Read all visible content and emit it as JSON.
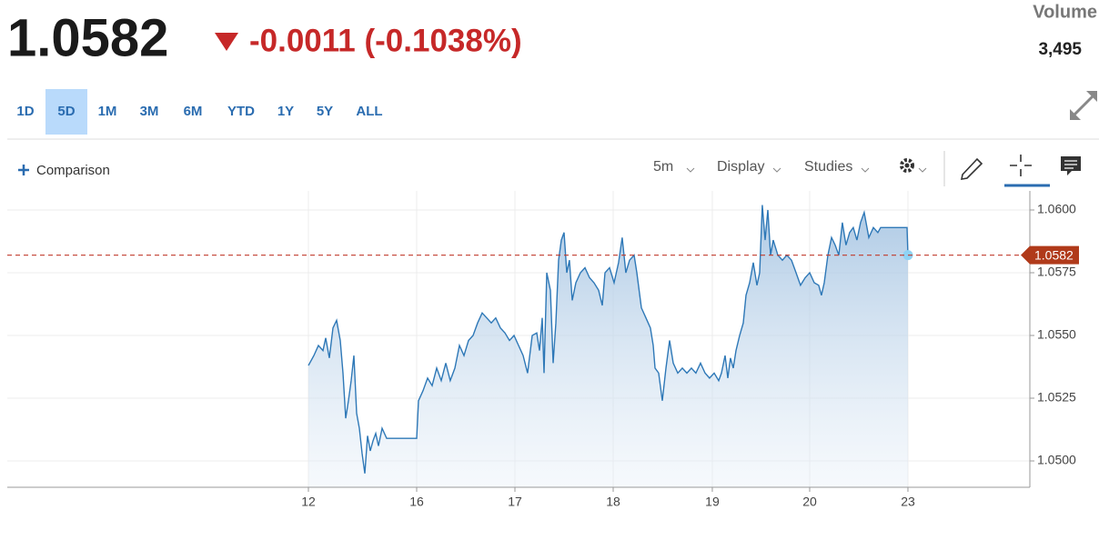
{
  "header": {
    "price": "1.0582",
    "change": "-0.0011 (-0.1038%)",
    "volume_label": "Volume",
    "volume": "3,495"
  },
  "range_buttons": [
    "1D",
    "5D",
    "1M",
    "3M",
    "6M",
    "YTD",
    "1Y",
    "5Y",
    "ALL"
  ],
  "selected_range": "5D",
  "toolbar": {
    "comparison": "Comparison",
    "interval": "5m",
    "display": "Display",
    "studies": "Studies"
  },
  "chart_data": {
    "type": "area",
    "x": [
      0,
      0.056,
      0.102,
      0.148,
      0.176,
      0.213,
      0.25,
      0.287,
      0.324,
      0.352,
      0.38,
      0.407,
      0.435,
      0.463,
      0.491,
      0.519,
      0.546,
      0.574,
      0.602,
      0.63,
      0.657,
      0.685,
      0.713,
      0.75,
      0.796,
      1.102,
      1.12,
      1.167,
      1.213,
      1.259,
      1.306,
      1.352,
      1.398,
      1.444,
      1.491,
      1.537,
      1.583,
      1.63,
      1.676,
      1.722,
      1.769,
      1.815,
      1.861,
      1.907,
      1.954,
      2.0,
      2.046,
      2.093,
      2.139,
      2.185,
      2.231,
      2.278,
      2.324,
      2.352,
      2.38,
      2.398,
      2.426,
      2.463,
      2.491,
      2.519,
      2.546,
      2.574,
      2.602,
      2.63,
      2.657,
      2.685,
      2.722,
      2.769,
      2.815,
      2.861,
      2.907,
      2.954,
      2.991,
      3.019,
      3.065,
      3.111,
      3.157,
      3.194,
      3.231,
      3.269,
      3.315,
      3.343,
      3.389,
      3.435,
      3.481,
      3.509,
      3.528,
      3.565,
      3.602,
      3.639,
      3.676,
      3.713,
      3.759,
      3.806,
      3.852,
      3.898,
      3.944,
      3.991,
      4.037,
      4.083,
      4.13,
      4.176,
      4.204,
      4.241,
      4.269,
      4.296,
      4.324,
      4.352,
      4.389,
      4.426,
      4.454,
      4.491,
      4.528,
      4.565,
      4.593,
      4.62,
      4.648,
      4.676,
      4.704,
      4.731,
      4.778,
      4.824,
      4.87,
      4.917,
      4.963,
      5.009,
      5.056,
      5.102,
      5.148,
      5.194,
      5.222,
      5.25,
      5.287,
      5.324,
      5.361,
      5.398,
      5.435,
      5.472,
      5.509,
      5.546,
      5.583,
      5.62,
      5.657,
      5.704,
      5.75,
      5.796,
      5.824,
      6.093,
      6.102
    ],
    "series": [
      {
        "color": "#2e78b7",
        "values": [
          1.0538,
          1.0542,
          1.0546,
          1.0544,
          1.0549,
          1.0541,
          1.0553,
          1.0556,
          1.0548,
          1.0535,
          1.0517,
          1.0524,
          1.0532,
          1.0542,
          1.0519,
          1.0513,
          1.0503,
          1.0495,
          1.051,
          1.0504,
          1.0508,
          1.0511,
          1.0506,
          1.0513,
          1.0509,
          1.0509,
          1.0524,
          1.0528,
          1.0533,
          1.053,
          1.0537,
          1.0532,
          1.0539,
          1.0532,
          1.0537,
          1.0546,
          1.0542,
          1.0548,
          1.055,
          1.0555,
          1.0559,
          1.0557,
          1.0555,
          1.0557,
          1.0553,
          1.0551,
          1.0548,
          1.055,
          1.0546,
          1.0542,
          1.0535,
          1.055,
          1.0551,
          1.0544,
          1.0557,
          1.0535,
          1.0575,
          1.0568,
          1.0539,
          1.0555,
          1.058,
          1.0588,
          1.0591,
          1.0575,
          1.058,
          1.0564,
          1.0571,
          1.0575,
          1.0577,
          1.0573,
          1.0571,
          1.0568,
          1.0562,
          1.0575,
          1.0577,
          1.0571,
          1.0579,
          1.0589,
          1.0575,
          1.058,
          1.0582,
          1.0575,
          1.0561,
          1.0557,
          1.0553,
          1.0546,
          1.0537,
          1.0535,
          1.0524,
          1.0537,
          1.0548,
          1.0539,
          1.0535,
          1.0537,
          1.0535,
          1.0537,
          1.0535,
          1.0539,
          1.0535,
          1.0533,
          1.0535,
          1.0532,
          1.0535,
          1.0542,
          1.0533,
          1.0541,
          1.0537,
          1.0544,
          1.055,
          1.0555,
          1.0566,
          1.0571,
          1.0579,
          1.057,
          1.0575,
          1.0602,
          1.0588,
          1.06,
          1.0582,
          1.0588,
          1.0582,
          1.058,
          1.0582,
          1.058,
          1.0575,
          1.057,
          1.0573,
          1.0575,
          1.0571,
          1.057,
          1.0566,
          1.0571,
          1.0582,
          1.0589,
          1.0586,
          1.0582,
          1.0595,
          1.0586,
          1.0591,
          1.0593,
          1.0588,
          1.0595,
          1.0599,
          1.0589,
          1.0593,
          1.0591,
          1.0593,
          1.0593,
          1.0582
        ]
      }
    ],
    "xlim": [
      -3.065,
      7.343
    ],
    "xticks": [
      {
        "value": 0,
        "label": "12"
      },
      {
        "value": 1.102,
        "label": "16"
      },
      {
        "value": 2.102,
        "label": "17"
      },
      {
        "value": 3.102,
        "label": "18"
      },
      {
        "value": 4.111,
        "label": "19"
      },
      {
        "value": 5.102,
        "label": "20"
      },
      {
        "value": 6.102,
        "label": "23"
      }
    ],
    "ylim": [
      1.04895,
      1.06076
    ],
    "yticks": [
      {
        "value": 1.05,
        "label": "1.0500"
      },
      {
        "value": 1.0525,
        "label": "1.0525"
      },
      {
        "value": 1.055,
        "label": "1.0550"
      },
      {
        "value": 1.0575,
        "label": "1.0575"
      },
      {
        "value": 1.06,
        "label": "1.0600"
      }
    ],
    "grid": true,
    "reference_line": {
      "value": 1.0582,
      "color": "#c0392b"
    }
  }
}
